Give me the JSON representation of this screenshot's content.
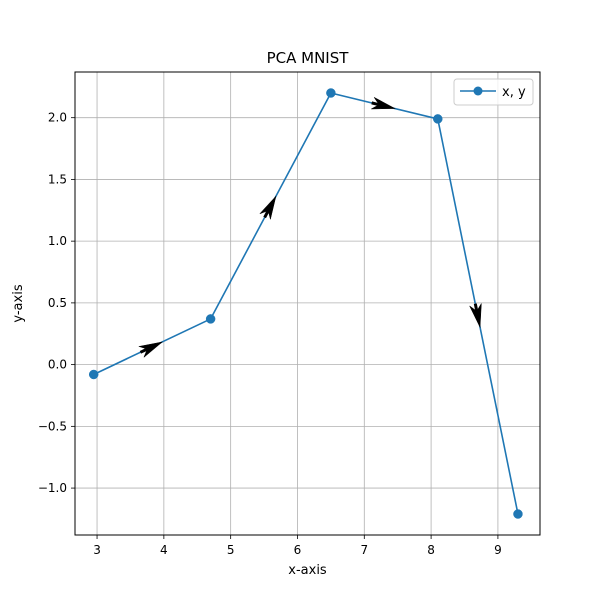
{
  "chart_data": {
    "type": "line",
    "title": "PCA MNIST",
    "xlabel": "x-axis",
    "ylabel": "y-axis",
    "xlim": [
      2.67,
      9.63
    ],
    "ylim": [
      -1.38,
      2.37
    ],
    "grid": true,
    "legend_position": "top-right",
    "x_ticks": [
      3,
      4,
      5,
      6,
      7,
      8,
      9
    ],
    "y_ticks": [
      -1.0,
      -0.5,
      0.0,
      0.5,
      1.0,
      1.5,
      2.0
    ],
    "x_tick_labels": [
      "3",
      "4",
      "5",
      "6",
      "7",
      "8",
      "9"
    ],
    "y_tick_labels": [
      "−1.0",
      "−0.5",
      "0.0",
      "0.5",
      "1.0",
      "1.5",
      "2.0"
    ],
    "series": [
      {
        "name": "x, y",
        "color": "#1f77b4",
        "marker": "circle",
        "x": [
          2.95,
          4.7,
          6.5,
          8.1,
          9.3
        ],
        "y": [
          -0.08,
          0.37,
          2.2,
          1.99,
          -1.21
        ]
      }
    ],
    "arrows": {
      "color": "#000000",
      "direction": "along-path"
    }
  }
}
